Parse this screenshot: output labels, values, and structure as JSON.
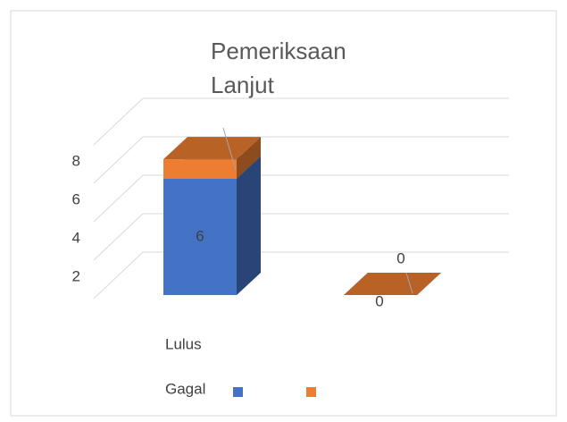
{
  "chart_data": {
    "type": "bar3d-stacked",
    "title": "Pemeriksaan Lanjut",
    "categories": [
      null,
      null
    ],
    "series": [
      {
        "name": "Lulus",
        "color": "#4472c4",
        "values": [
          6,
          0
        ],
        "value_labels": [
          "6",
          "0"
        ]
      },
      {
        "name": "Gagal",
        "color": "#ed7d31",
        "values": [
          1,
          0
        ],
        "value_labels": [
          null,
          "0"
        ]
      }
    ],
    "ylim": [
      0,
      10
    ],
    "yticks": [
      2,
      4,
      6,
      8
    ],
    "grid": true
  }
}
